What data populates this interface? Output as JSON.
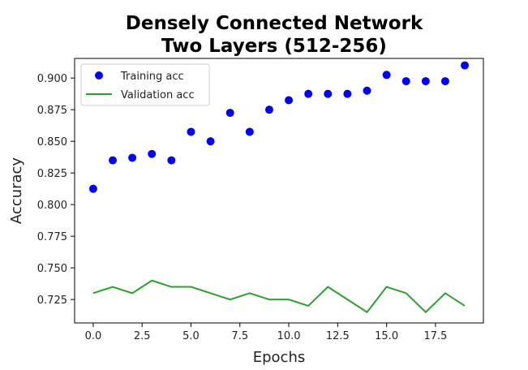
{
  "chart_data": {
    "type": "line",
    "title_lines": [
      "Densely Connected Network",
      "Two Layers (512-256)"
    ],
    "xlabel": "Epochs",
    "ylabel": "Accuracy",
    "xlim": [
      -0.95,
      19.95
    ],
    "ylim": [
      0.7065,
      0.9155
    ],
    "x_ticks": [
      0.0,
      2.5,
      5.0,
      7.5,
      10.0,
      12.5,
      15.0,
      17.5
    ],
    "x_tick_labels": [
      "0.0",
      "2.5",
      "5.0",
      "7.5",
      "10.0",
      "12.5",
      "15.0",
      "17.5"
    ],
    "y_ticks": [
      0.725,
      0.75,
      0.775,
      0.8,
      0.825,
      0.85,
      0.875,
      0.9
    ],
    "y_tick_labels": [
      "0.725",
      "0.750",
      "0.775",
      "0.800",
      "0.825",
      "0.850",
      "0.875",
      "0.900"
    ],
    "grid": false,
    "legend_position": "upper-left",
    "x": [
      0,
      1,
      2,
      3,
      4,
      5,
      6,
      7,
      8,
      9,
      10,
      11,
      12,
      13,
      14,
      15,
      16,
      17,
      18,
      19
    ],
    "series": [
      {
        "name": "Training acc",
        "style": "markers",
        "color": "#0000ff",
        "values": [
          0.8125,
          0.835,
          0.837,
          0.84,
          0.835,
          0.8575,
          0.85,
          0.8725,
          0.8575,
          0.875,
          0.8825,
          0.8875,
          0.8875,
          0.8875,
          0.89,
          0.9025,
          0.8975,
          0.8975,
          0.8975,
          0.91
        ]
      },
      {
        "name": "Validation acc",
        "style": "line",
        "color": "#2ca02c",
        "values": [
          0.73,
          0.735,
          0.73,
          0.74,
          0.735,
          0.735,
          0.73,
          0.725,
          0.73,
          0.725,
          0.725,
          0.72,
          0.735,
          0.725,
          0.715,
          0.735,
          0.73,
          0.715,
          0.73,
          0.72
        ]
      }
    ]
  }
}
